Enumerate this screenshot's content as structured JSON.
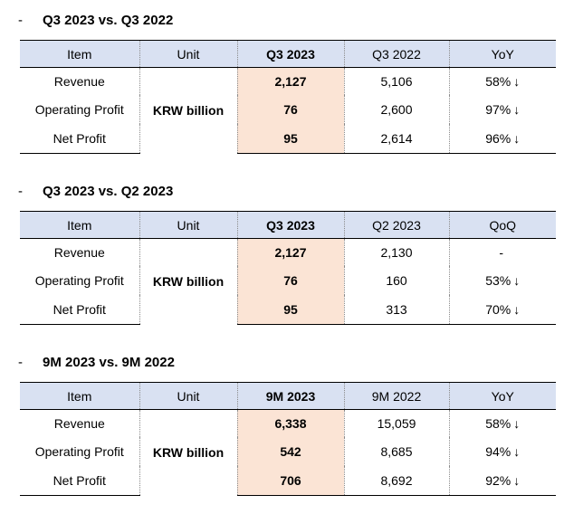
{
  "sections": [
    {
      "title": "Q3 2023 vs. Q3 2022",
      "headers": {
        "item": "Item",
        "unit": "Unit",
        "current": "Q3 2023",
        "previous": "Q3 2022",
        "change": "YoY"
      },
      "unit": "KRW billion",
      "rows": [
        {
          "item": "Revenue",
          "current": "2,127",
          "previous": "5,106",
          "change": "58%",
          "arrow": "↓"
        },
        {
          "item": "Operating Profit",
          "current": "76",
          "previous": "2,600",
          "change": "97%",
          "arrow": "↓"
        },
        {
          "item": "Net Profit",
          "current": "95",
          "previous": "2,614",
          "change": "96%",
          "arrow": "↓"
        }
      ]
    },
    {
      "title": "Q3 2023 vs. Q2 2023",
      "headers": {
        "item": "Item",
        "unit": "Unit",
        "current": "Q3 2023",
        "previous": "Q2 2023",
        "change": "QoQ"
      },
      "unit": "KRW billion",
      "rows": [
        {
          "item": "Revenue",
          "current": "2,127",
          "previous": "2,130",
          "change": "-",
          "arrow": ""
        },
        {
          "item": "Operating Profit",
          "current": "76",
          "previous": "160",
          "change": "53%",
          "arrow": "↓"
        },
        {
          "item": "Net Profit",
          "current": "95",
          "previous": "313",
          "change": "70%",
          "arrow": "↓"
        }
      ]
    },
    {
      "title": "9M 2023 vs. 9M 2022",
      "headers": {
        "item": "Item",
        "unit": "Unit",
        "current": "9M 2023",
        "previous": "9M 2022",
        "change": "YoY"
      },
      "unit": "KRW billion",
      "rows": [
        {
          "item": "Revenue",
          "current": "6,338",
          "previous": "15,059",
          "change": "58%",
          "arrow": "↓"
        },
        {
          "item": "Operating Profit",
          "current": "542",
          "previous": "8,685",
          "change": "94%",
          "arrow": "↓"
        },
        {
          "item": "Net Profit",
          "current": "706",
          "previous": "8,692",
          "change": "92%",
          "arrow": "↓"
        }
      ]
    }
  ],
  "bullet": "-",
  "colors": {
    "header_bg": "#d9e1f2",
    "highlight_bg": "#fbe4d5"
  }
}
